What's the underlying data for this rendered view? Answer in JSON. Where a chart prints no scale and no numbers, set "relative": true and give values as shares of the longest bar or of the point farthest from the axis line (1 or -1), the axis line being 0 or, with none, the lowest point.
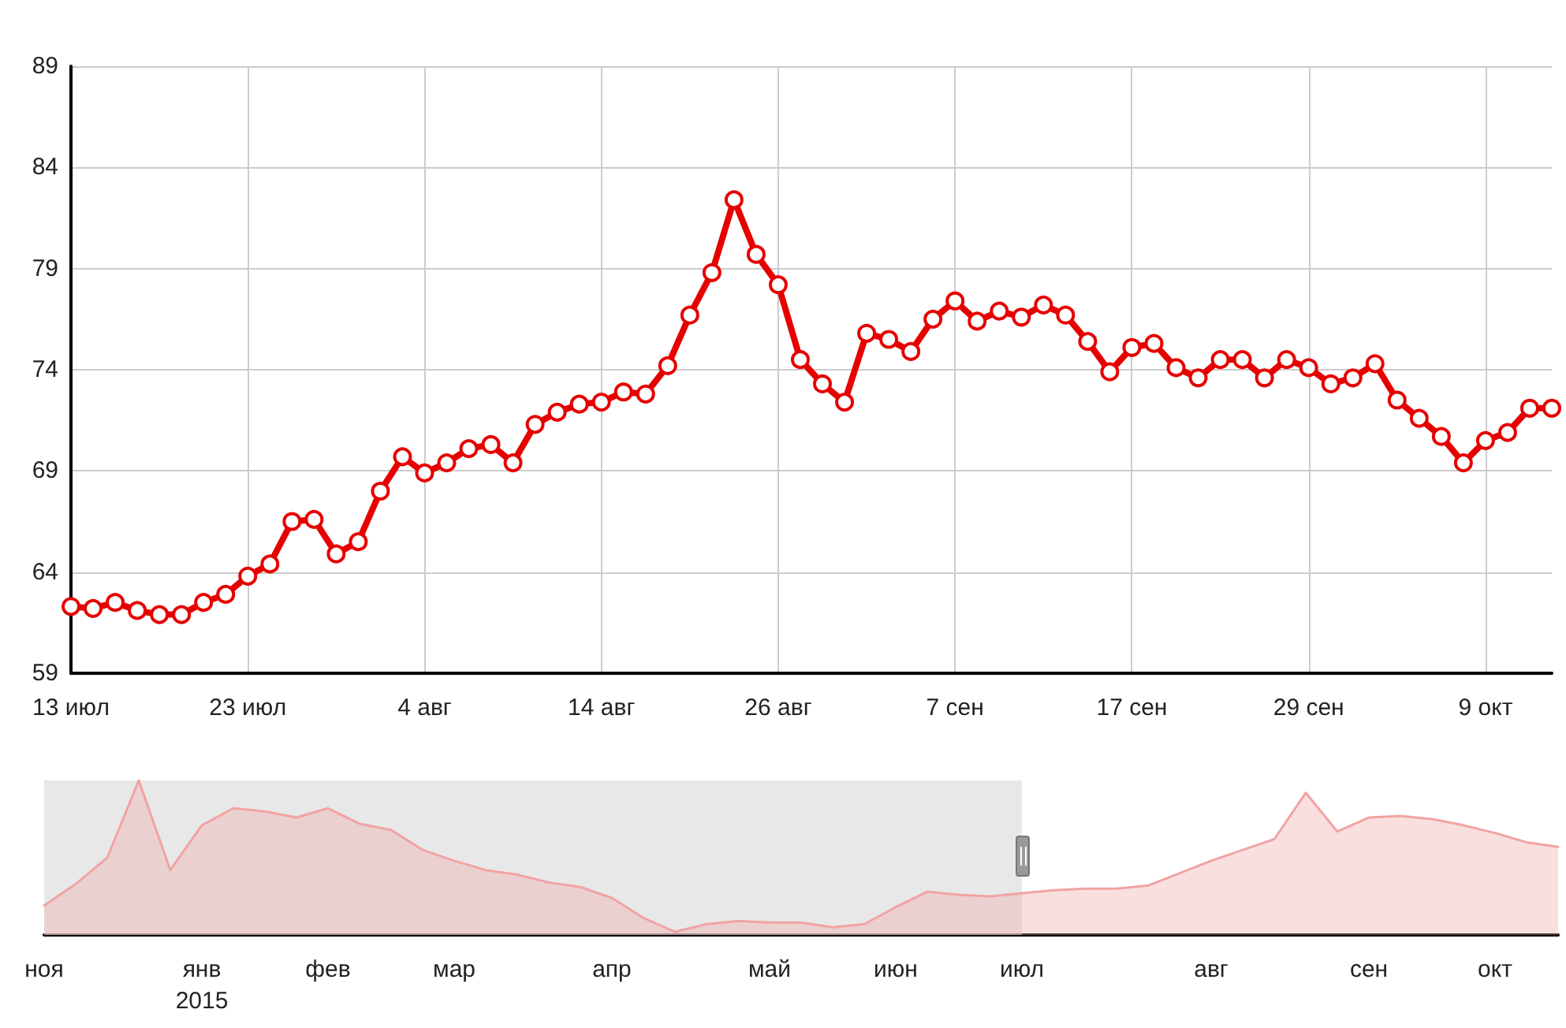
{
  "chart_data": [
    {
      "type": "line",
      "categories": [
        "13 июл",
        null,
        null,
        null,
        null,
        null,
        null,
        null,
        "23 июл",
        null,
        null,
        null,
        null,
        null,
        null,
        null,
        "4 авг",
        null,
        null,
        null,
        null,
        null,
        null,
        null,
        "14 авг",
        null,
        null,
        null,
        null,
        null,
        null,
        null,
        "26 авг",
        null,
        null,
        null,
        null,
        null,
        null,
        null,
        "7 сен",
        null,
        null,
        null,
        null,
        null,
        null,
        null,
        "17 сен",
        null,
        null,
        null,
        null,
        null,
        null,
        null,
        "29 сен",
        null,
        null,
        null,
        null,
        null,
        null,
        null,
        "9 окт",
        null,
        null,
        null
      ],
      "series": [
        {
          "color": "#e60000",
          "values": [
            62.3,
            62.2,
            62.5,
            62.1,
            61.9,
            61.9,
            62.5,
            62.9,
            63.8,
            64.4,
            66.5,
            66.6,
            64.9,
            65.5,
            68.0,
            69.7,
            68.9,
            69.4,
            70.1,
            70.3,
            69.4,
            71.3,
            71.9,
            72.3,
            72.4,
            72.9,
            72.8,
            74.2,
            76.7,
            78.8,
            82.4,
            79.7,
            78.2,
            74.5,
            73.3,
            72.4,
            75.8,
            75.5,
            74.9,
            76.5,
            77.4,
            76.4,
            76.9,
            76.6,
            77.2,
            76.7,
            75.4,
            73.9,
            75.1,
            75.3,
            74.1,
            73.6,
            74.5,
            74.5,
            73.6,
            74.5,
            74.1,
            73.3,
            73.6,
            74.3,
            72.5,
            71.6,
            70.7,
            69.4,
            70.5,
            70.9,
            72.1,
            72.1
          ]
        }
      ],
      "ylim": [
        59,
        89
      ],
      "yticks": [
        59,
        64,
        69,
        74,
        79,
        84,
        89
      ],
      "grid": true,
      "marker": "circle",
      "line_style": "solid"
    },
    {
      "type": "area",
      "relative": true,
      "categories": [
        "ноя",
        null,
        null,
        null,
        null,
        "янв\n2015",
        null,
        null,
        null,
        "фев",
        null,
        null,
        null,
        "мар",
        null,
        null,
        null,
        null,
        "апр",
        null,
        null,
        null,
        null,
        "май",
        null,
        null,
        null,
        "июн",
        null,
        null,
        null,
        "июл",
        null,
        null,
        null,
        null,
        null,
        "авг",
        null,
        null,
        null,
        null,
        "сен",
        null,
        null,
        null,
        "окт",
        null,
        null
      ],
      "series": [
        {
          "color": "#f2a3a3",
          "values": [
            0.19,
            0.33,
            0.5,
            1,
            0.42,
            0.71,
            0.82,
            0.8,
            0.76,
            0.82,
            0.72,
            0.68,
            0.55,
            0.48,
            0.42,
            0.39,
            0.34,
            0.31,
            0.24,
            0.11,
            0.02,
            0.07,
            0.09,
            0.08,
            0.08,
            0.05,
            0.07,
            0.18,
            0.28,
            0.26,
            0.25,
            0.27,
            0.29,
            0.3,
            0.3,
            0.32,
            0.4,
            0.48,
            0.55,
            0.62,
            0.92,
            0.67,
            0.76,
            0.77,
            0.75,
            0.71,
            0.66,
            0.6,
            0.57
          ]
        }
      ],
      "bands": [
        {
          "axis": "x",
          "from": "ноя",
          "to": "июл",
          "color": "#d9d9d9"
        }
      ]
    }
  ]
}
